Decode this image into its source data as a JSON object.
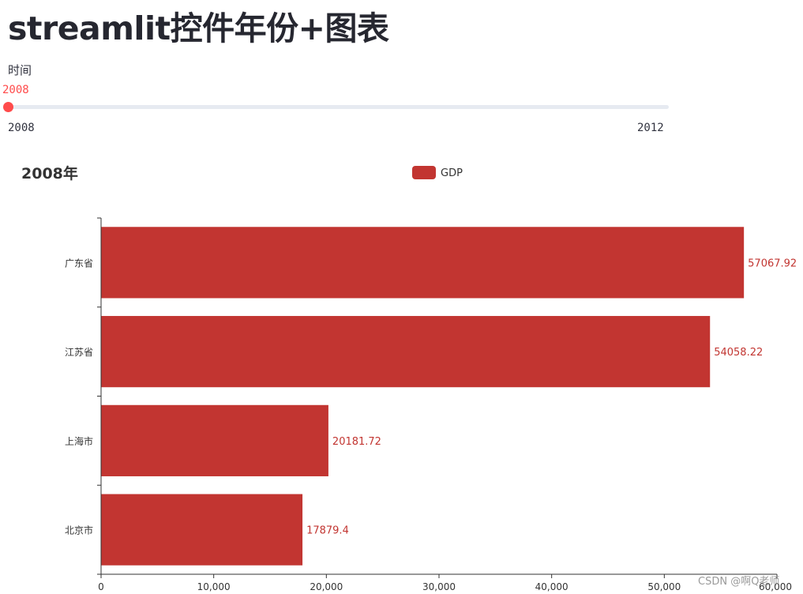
{
  "page": {
    "title": "streamlit控件年份+图表"
  },
  "slider": {
    "label": "时间",
    "value": 2008,
    "value_text": "2008",
    "min_text": "2008",
    "max_text": "2012",
    "min": 2008,
    "max": 2012,
    "accent_color": "#ff4b4b",
    "track_color": "#e6eaf1"
  },
  "chart_data": {
    "type": "bar",
    "orientation": "horizontal",
    "title": "2008年",
    "categories": [
      "北京市",
      "上海市",
      "江苏省",
      "广东省"
    ],
    "series": [
      {
        "name": "GDP",
        "values": [
          17879.4,
          20181.72,
          54058.22,
          57067.92
        ],
        "color": "#c23531"
      }
    ],
    "data_labels": [
      "17879.4",
      "20181.72",
      "54058.22",
      "57067.92"
    ],
    "xlim": [
      0,
      60000
    ],
    "x_ticks": [
      0,
      10000,
      20000,
      30000,
      40000,
      50000,
      60000
    ],
    "x_tick_labels": [
      "0",
      "10,000",
      "20,000",
      "30,000",
      "40,000",
      "50,000",
      "60,000"
    ],
    "legend_position": "top-center",
    "grid": false
  },
  "watermark": {
    "text": "CSDN @啊Q老师"
  }
}
